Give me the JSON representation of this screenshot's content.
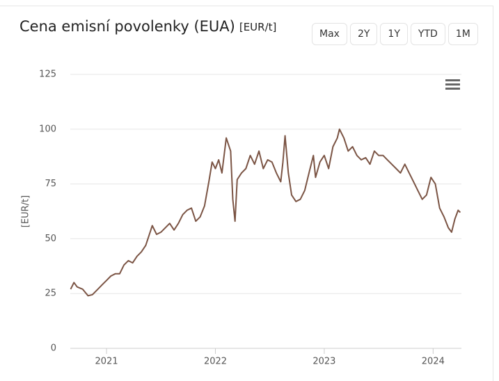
{
  "chart_data": {
    "type": "line",
    "title": "Cena emisní povolenky (EUA)",
    "unit": "[EUR/t]",
    "ylabel": "[EUR/t]",
    "range_buttons": [
      "Max",
      "2Y",
      "1Y",
      "YTD",
      "1M"
    ],
    "x": [
      2020.67,
      2020.7,
      2020.73,
      2020.78,
      2020.83,
      2020.87,
      2020.92,
      2020.96,
      2021.0,
      2021.04,
      2021.08,
      2021.12,
      2021.16,
      2021.2,
      2021.24,
      2021.28,
      2021.32,
      2021.36,
      2021.4,
      2021.42,
      2021.46,
      2021.5,
      2021.54,
      2021.58,
      2021.62,
      2021.66,
      2021.7,
      2021.74,
      2021.78,
      2021.82,
      2021.86,
      2021.9,
      2021.94,
      2021.97,
      2022.0,
      2022.03,
      2022.06,
      2022.1,
      2022.14,
      2022.16,
      2022.18,
      2022.2,
      2022.24,
      2022.28,
      2022.32,
      2022.36,
      2022.4,
      2022.44,
      2022.48,
      2022.52,
      2022.56,
      2022.6,
      2022.62,
      2022.64,
      2022.67,
      2022.7,
      2022.74,
      2022.78,
      2022.82,
      2022.86,
      2022.9,
      2022.92,
      2022.96,
      2023.0,
      2023.04,
      2023.08,
      2023.12,
      2023.14,
      2023.18,
      2023.22,
      2023.26,
      2023.3,
      2023.34,
      2023.38,
      2023.42,
      2023.46,
      2023.5,
      2023.54,
      2023.58,
      2023.62,
      2023.66,
      2023.7,
      2023.74,
      2023.78,
      2023.82,
      2023.86,
      2023.9,
      2023.94,
      2023.98,
      2024.02,
      2024.06,
      2024.1,
      2024.14,
      2024.17,
      2024.2,
      2024.23,
      2024.25
    ],
    "values": [
      27,
      30,
      28,
      27,
      24,
      24.5,
      27,
      29,
      31,
      33,
      34,
      34,
      38,
      40,
      39,
      42,
      44,
      47,
      53,
      56,
      52,
      53,
      55,
      57,
      54,
      57,
      61,
      63,
      64,
      58,
      60,
      65,
      76,
      85,
      82,
      86,
      80,
      96,
      90,
      68,
      58,
      77,
      80,
      82,
      88,
      84,
      90,
      82,
      86,
      85,
      80,
      76,
      85,
      97,
      80,
      70,
      67,
      68,
      72,
      80,
      88,
      78,
      85,
      88,
      82,
      92,
      96,
      100,
      96,
      90,
      92,
      88,
      86,
      87,
      84,
      90,
      88,
      88,
      86,
      84,
      82,
      80,
      84,
      80,
      76,
      72,
      68,
      70,
      78,
      75,
      64,
      60,
      55,
      53,
      59,
      63,
      62
    ],
    "color": "#7b5444",
    "xlim": [
      2020.667,
      2024.26
    ],
    "xticks": [
      2021,
      2022,
      2023,
      2024
    ],
    "ylim": [
      0,
      125
    ],
    "yticks": [
      0,
      25,
      50,
      75,
      100,
      125
    ],
    "grid": true
  }
}
